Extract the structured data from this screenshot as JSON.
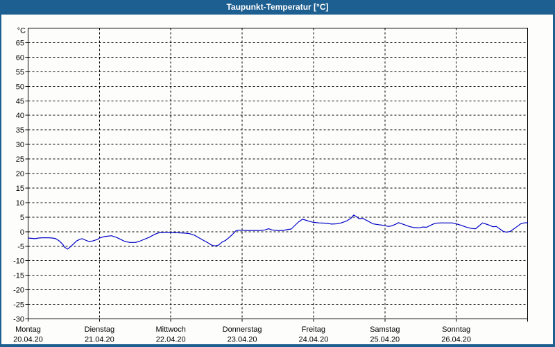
{
  "window": {
    "title": "Taupunkt-Temperatur [°C]",
    "title_bar_color": "#1e5f91",
    "border_color": "#1e5f91",
    "background_color": "#fdfefb"
  },
  "chart_data": {
    "type": "line",
    "title": "Taupunkt-Temperatur [°C]",
    "grid": {
      "on": true,
      "dashed": true,
      "color": "#000000"
    },
    "frame_color": "#000000",
    "y_axis": {
      "unit_label": "°C",
      "min": -30,
      "max": 70,
      "tick_step": 5,
      "tick_labels": [
        65,
        60,
        55,
        50,
        45,
        40,
        35,
        30,
        25,
        20,
        15,
        10,
        5,
        0,
        -5,
        -10,
        -15,
        -20,
        -25,
        -30
      ]
    },
    "x_axis": {
      "span_hours": 168,
      "days": [
        {
          "name": "Montag",
          "date": "20.04.20"
        },
        {
          "name": "Dienstag",
          "date": "21.04.20"
        },
        {
          "name": "Mittwoch",
          "date": "22.04.20"
        },
        {
          "name": "Donnerstag",
          "date": "23.04.20"
        },
        {
          "name": "Freitag",
          "date": "24.04.20"
        },
        {
          "name": "Samstag",
          "date": "25.04.20"
        },
        {
          "name": "Sonntag",
          "date": "26.04.20"
        }
      ]
    },
    "series": [
      {
        "name": "Taupunkt-Temperatur",
        "color": "#0000c8",
        "points": [
          [
            0,
            -2.2
          ],
          [
            2.3,
            -2.4
          ],
          [
            3.5,
            -2.2
          ],
          [
            4.7,
            -2.1
          ],
          [
            7,
            -2.1
          ],
          [
            8.2,
            -2.2
          ],
          [
            9.3,
            -2.4
          ],
          [
            10.5,
            -3.2
          ],
          [
            11.7,
            -4.4
          ],
          [
            12.3,
            -5.4
          ],
          [
            13.3,
            -6
          ],
          [
            14,
            -5.4
          ],
          [
            15.1,
            -4.4
          ],
          [
            16.3,
            -3.2
          ],
          [
            17.5,
            -2.6
          ],
          [
            18.2,
            -2.4
          ],
          [
            19.3,
            -2.9
          ],
          [
            20.5,
            -3.4
          ],
          [
            21.7,
            -3.2
          ],
          [
            23.3,
            -2.7
          ],
          [
            24,
            -2.2
          ],
          [
            25.6,
            -1.7
          ],
          [
            28,
            -1.4
          ],
          [
            29.6,
            -1.9
          ],
          [
            31,
            -2.6
          ],
          [
            32.6,
            -3.4
          ],
          [
            34.2,
            -3.7
          ],
          [
            36.1,
            -3.7
          ],
          [
            37.3,
            -3.4
          ],
          [
            38.4,
            -2.9
          ],
          [
            39.6,
            -2.4
          ],
          [
            40.8,
            -1.9
          ],
          [
            41.9,
            -1.3
          ],
          [
            43.1,
            -0.7
          ],
          [
            44.3,
            -0.3
          ],
          [
            46.6,
            -0.2
          ],
          [
            48.9,
            -0.3
          ],
          [
            50.8,
            -0.4
          ],
          [
            52.7,
            -0.5
          ],
          [
            54.3,
            -0.7
          ],
          [
            55.9,
            -1.2
          ],
          [
            57.6,
            -2.2
          ],
          [
            59,
            -3
          ],
          [
            60.6,
            -3.9
          ],
          [
            61.7,
            -4.6
          ],
          [
            62.9,
            -4.9
          ],
          [
            64.1,
            -4.6
          ],
          [
            65.2,
            -3.6
          ],
          [
            66.4,
            -3
          ],
          [
            67.6,
            -2
          ],
          [
            68.7,
            -1
          ],
          [
            69.9,
            0.3
          ],
          [
            71.1,
            0.5
          ],
          [
            73.4,
            0.4
          ],
          [
            75.7,
            0.4
          ],
          [
            78.1,
            0.4
          ],
          [
            79.7,
            0.6
          ],
          [
            80.9,
            1
          ],
          [
            82,
            0.6
          ],
          [
            83.9,
            0.4
          ],
          [
            85.7,
            0.4
          ],
          [
            87.1,
            0.7
          ],
          [
            88.5,
            0.9
          ],
          [
            89.7,
            2.1
          ],
          [
            90.9,
            3.3
          ],
          [
            92.3,
            4.3
          ],
          [
            93.2,
            4
          ],
          [
            94.4,
            3.6
          ],
          [
            96,
            3.2
          ],
          [
            97.9,
            3
          ],
          [
            100.2,
            2.9
          ],
          [
            102.1,
            2.6
          ],
          [
            103.7,
            2.7
          ],
          [
            105.3,
            3
          ],
          [
            107.2,
            3.7
          ],
          [
            108.6,
            4.6
          ],
          [
            109.5,
            5.7
          ],
          [
            110.4,
            5.2
          ],
          [
            111.4,
            4.4
          ],
          [
            112.5,
            4.6
          ],
          [
            114.2,
            3.7
          ],
          [
            116,
            2.7
          ],
          [
            117.7,
            2.4
          ],
          [
            119.5,
            2.2
          ],
          [
            121.2,
            1.8
          ],
          [
            122.3,
            2
          ],
          [
            123.5,
            2.5
          ],
          [
            124.6,
            3.1
          ],
          [
            126,
            2.6
          ],
          [
            128.2,
            1.8
          ],
          [
            129.8,
            1.4
          ],
          [
            131.4,
            1.3
          ],
          [
            132.8,
            1.6
          ],
          [
            134,
            1.5
          ],
          [
            135.6,
            2.3
          ],
          [
            137,
            2.9
          ],
          [
            138.6,
            3
          ],
          [
            141,
            3
          ],
          [
            142.6,
            3
          ],
          [
            144,
            2.7
          ],
          [
            145.6,
            2.2
          ],
          [
            147.2,
            1.6
          ],
          [
            149.1,
            1.1
          ],
          [
            150.5,
            1
          ],
          [
            151.7,
            2
          ],
          [
            152.8,
            3
          ],
          [
            153.8,
            2.7
          ],
          [
            155.2,
            2.2
          ],
          [
            156.3,
            1.7
          ],
          [
            157.5,
            1.8
          ],
          [
            158.7,
            0.9
          ],
          [
            159.8,
            0.1
          ],
          [
            161,
            -0.2
          ],
          [
            162.2,
            0.1
          ],
          [
            163.3,
            0.9
          ],
          [
            164.5,
            1.8
          ],
          [
            165.7,
            2.7
          ],
          [
            166.8,
            3
          ],
          [
            168,
            3.1
          ]
        ]
      }
    ]
  }
}
